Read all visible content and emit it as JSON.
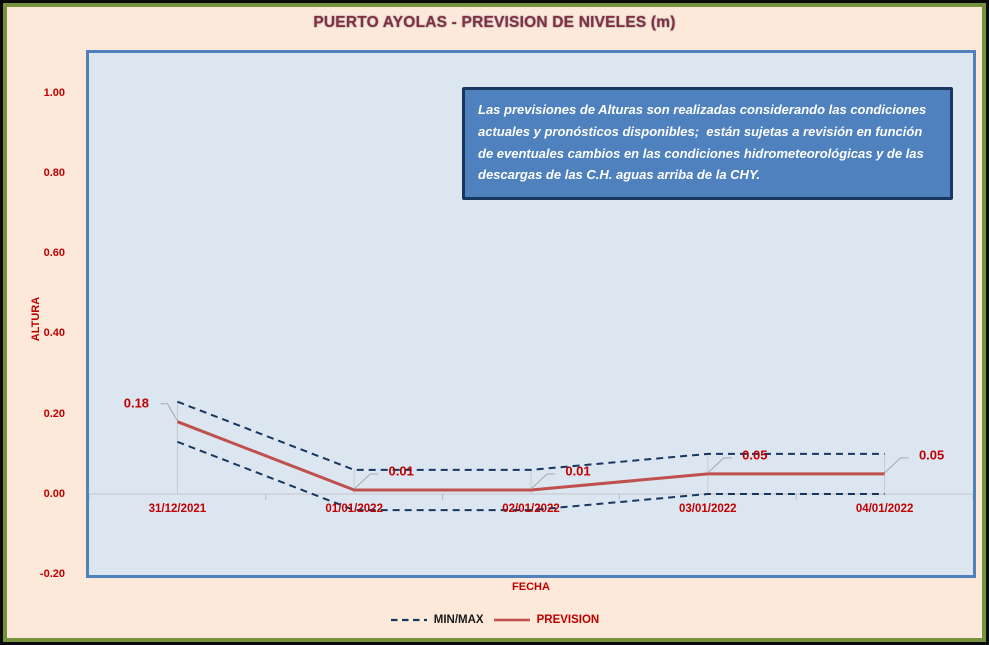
{
  "chart_data": {
    "type": "line",
    "title": "PUERTO AYOLAS - PREVISION DE NIVELES (m)",
    "xlabel": "FECHA",
    "ylabel": "ALTURA",
    "categories": [
      "31/12/2021",
      "01/01/2022",
      "02/01/2022",
      "03/01/2022",
      "04/01/2022"
    ],
    "series": [
      {
        "name": "MAX",
        "legend": "MIN/MAX",
        "style": "dashed",
        "color": "#17375E",
        "values": [
          0.23,
          0.06,
          0.06,
          0.1,
          0.1
        ]
      },
      {
        "name": "MIN",
        "legend": "MIN/MAX",
        "style": "dashed",
        "color": "#17375E",
        "values": [
          0.13,
          -0.04,
          -0.04,
          0.0,
          0.0
        ]
      },
      {
        "name": "PREVISION",
        "legend": "PREVISION",
        "style": "solid",
        "color": "#C0504D",
        "values": [
          0.18,
          0.01,
          0.01,
          0.05,
          0.05
        ],
        "labels": [
          "0.18",
          "0.01",
          "0.01",
          "0.05",
          "0.05"
        ]
      }
    ],
    "y_ticks": [
      "1.00",
      "0.80",
      "0.60",
      "0.40",
      "0.20",
      "0.00",
      "-0.20"
    ],
    "ylim": [
      -0.2,
      1.0
    ],
    "grid": false,
    "legend_position": "bottom",
    "legend": [
      {
        "label": "MIN/MAX",
        "swatch": "dashed-line",
        "color": "#17375E",
        "text_color": "#1A1A1A"
      },
      {
        "label": "PREVISION",
        "swatch": "solid-line",
        "color": "#C0504D",
        "text_color": "#C00000"
      }
    ]
  },
  "note": {
    "text": "Las previsiones de Alturas son realizadas considerando las condiciones actuales y pronósticos disponibles;  están sujetas a revisión en función de eventuales cambios en las condiciones hidrometeorológicas y de las descargas de las C.H. aguas arriba de la CHY."
  },
  "colors": {
    "background": "#FCE9DA",
    "frame_green": "#76923C",
    "plot_bg": "#DCE6F1",
    "plot_border": "#4F81BD",
    "note_bg": "#4E81BD",
    "note_border": "#17375E",
    "label_red": "#C00000",
    "prevision_red": "#C0504D",
    "minmax_navy": "#17375E",
    "axis_gray": "#CBCFD8",
    "dropline_gray": "#C6C9CE",
    "leader_gray": "#A9A9A9"
  }
}
